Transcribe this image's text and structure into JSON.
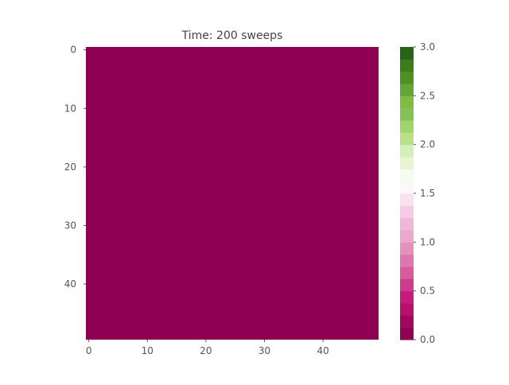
{
  "chart_data": {
    "type": "heatmap",
    "title": "Time: 200 sweeps",
    "xlabel": "",
    "ylabel": "",
    "grid_size": [
      50,
      50
    ],
    "uniform_value": 0.0,
    "x_ticks": [
      0,
      10,
      20,
      30,
      40
    ],
    "y_ticks": [
      0,
      10,
      20,
      30,
      40
    ],
    "xlim": [
      -0.5,
      49.5
    ],
    "ylim": [
      49.5,
      -0.5
    ],
    "grid": false,
    "colorbar": {
      "placement": "right",
      "range": [
        0.0,
        3.0
      ],
      "ticks": [
        0.0,
        0.5,
        1.0,
        1.5,
        2.0,
        2.5,
        3.0
      ],
      "tick_labels": [
        "0.0",
        "0.5",
        "1.0",
        "1.5",
        "2.0",
        "2.5",
        "3.0"
      ],
      "colormap": "PiYG",
      "levels": 24,
      "colors": [
        "#8e0152",
        "#a3065f",
        "#b8116d",
        "#c51b7d",
        "#cf3b8c",
        "#d85b9c",
        "#de77ae",
        "#e590bd",
        "#eba9cc",
        "#f1b6da",
        "#f5cce4",
        "#f9e1ee",
        "#fdf7fa",
        "#f7fcf0",
        "#e6f5d0",
        "#d4eebb",
        "#b8e186",
        "#a0d46d",
        "#86c155",
        "#7fbc41",
        "#63a637",
        "#4d9221",
        "#3b7c1c",
        "#276419"
      ]
    }
  }
}
